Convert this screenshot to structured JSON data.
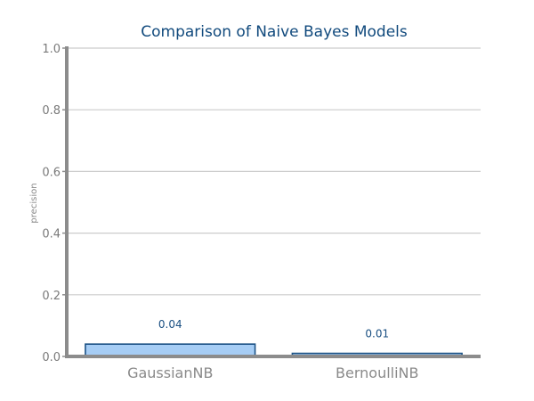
{
  "chart_data": {
    "type": "bar",
    "title": "Comparison of Naive Bayes Models",
    "ylabel": "precision",
    "xlabel": "",
    "categories": [
      "GaussianNB",
      "BernoulliNB"
    ],
    "values": [
      0.04,
      0.01
    ],
    "data_labels": [
      "0.04",
      "0.01"
    ],
    "ylim": [
      0,
      1.0
    ],
    "yticks": [
      0.0,
      0.2,
      0.4,
      0.6,
      0.8,
      1.0
    ],
    "ytick_labels": [
      "0.0",
      "0.2",
      "0.4",
      "0.6",
      "0.8",
      "1.0"
    ],
    "grid": true,
    "legend": "none",
    "colors": {
      "bar_fill": "#a6cdf5",
      "bar_stroke": "#1c5285",
      "title": "#114a7d",
      "grid": "#cccccc",
      "axis": "#8c8c8c"
    }
  }
}
